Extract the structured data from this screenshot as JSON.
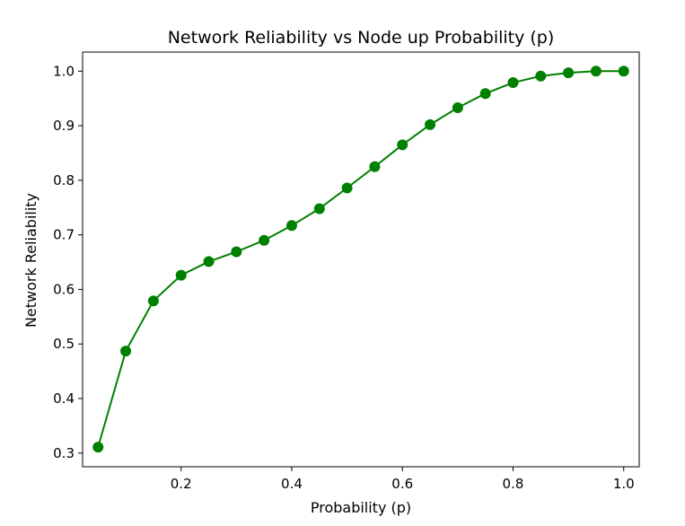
{
  "chart_data": {
    "type": "line",
    "title": "Network Reliability vs Node up Probability (p)",
    "xlabel": "Probability (p)",
    "ylabel": "Network Reliability",
    "xlim": [
      0.022,
      1.028
    ],
    "ylim": [
      0.275,
      1.035
    ],
    "xticks": [
      0.2,
      0.4,
      0.6,
      0.8,
      1.0
    ],
    "xtick_labels": [
      "0.2",
      "0.4",
      "0.6",
      "0.8",
      "1.0"
    ],
    "yticks": [
      0.3,
      0.4,
      0.5,
      0.6,
      0.7,
      0.8,
      0.9,
      1.0
    ],
    "ytick_labels": [
      "0.3",
      "0.4",
      "0.5",
      "0.6",
      "0.7",
      "0.8",
      "0.9",
      "1.0"
    ],
    "grid": false,
    "legend": "none",
    "marker": "circle",
    "series": [
      {
        "color": "#008000",
        "x": [
          0.05,
          0.1,
          0.15,
          0.2,
          0.25,
          0.3,
          0.35,
          0.4,
          0.45,
          0.5,
          0.55,
          0.6,
          0.65,
          0.7,
          0.75,
          0.8,
          0.85,
          0.9,
          0.95,
          1.0
        ],
        "y": [
          0.311,
          0.487,
          0.579,
          0.626,
          0.651,
          0.669,
          0.69,
          0.717,
          0.748,
          0.786,
          0.825,
          0.865,
          0.902,
          0.933,
          0.959,
          0.979,
          0.991,
          0.997,
          1.0,
          1.0
        ]
      }
    ]
  }
}
